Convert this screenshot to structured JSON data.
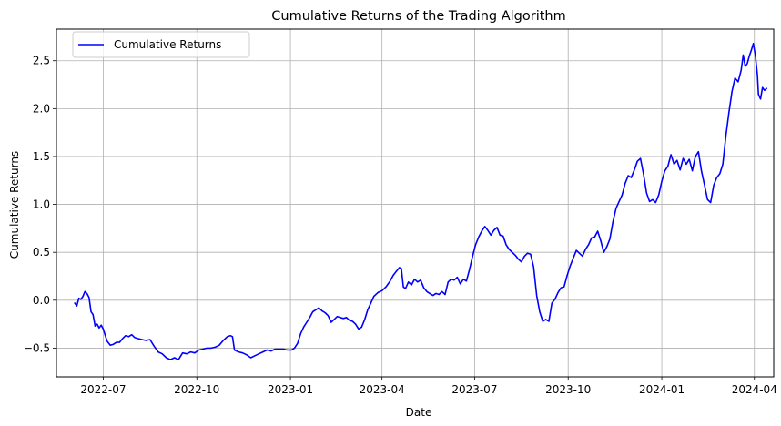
{
  "chart_data": {
    "type": "line",
    "title": "Cumulative Returns of the Trading Algorithm",
    "xlabel": "Date",
    "ylabel": "Cumulative Returns",
    "xlim": [
      "2022-05-16",
      "2024-04-20"
    ],
    "ylim": [
      -0.8,
      2.83
    ],
    "x_ticks": [
      "2022-07",
      "2022-10",
      "2023-01",
      "2023-04",
      "2023-07",
      "2023-10",
      "2024-01",
      "2024-04"
    ],
    "y_ticks": [
      -0.5,
      0.0,
      0.5,
      1.0,
      1.5,
      2.0,
      2.5
    ],
    "y_tick_labels": [
      "−0.5",
      "0.0",
      "0.5",
      "1.0",
      "1.5",
      "2.0",
      "2.5"
    ],
    "grid": true,
    "legend_position": "upper-left",
    "series": [
      {
        "name": "Cumulative Returns",
        "color": "#0000ff",
        "points": [
          [
            "2022-06-03",
            -0.03
          ],
          [
            "2022-06-05",
            -0.06
          ],
          [
            "2022-06-07",
            0.02
          ],
          [
            "2022-06-09",
            0.01
          ],
          [
            "2022-06-11",
            0.04
          ],
          [
            "2022-06-13",
            0.09
          ],
          [
            "2022-06-15",
            0.07
          ],
          [
            "2022-06-17",
            0.03
          ],
          [
            "2022-06-19",
            -0.12
          ],
          [
            "2022-06-21",
            -0.15
          ],
          [
            "2022-06-23",
            -0.27
          ],
          [
            "2022-06-25",
            -0.25
          ],
          [
            "2022-06-27",
            -0.29
          ],
          [
            "2022-06-29",
            -0.26
          ],
          [
            "2022-07-01",
            -0.3
          ],
          [
            "2022-07-03",
            -0.37
          ],
          [
            "2022-07-05",
            -0.43
          ],
          [
            "2022-07-08",
            -0.47
          ],
          [
            "2022-07-11",
            -0.46
          ],
          [
            "2022-07-14",
            -0.44
          ],
          [
            "2022-07-17",
            -0.44
          ],
          [
            "2022-07-20",
            -0.4
          ],
          [
            "2022-07-23",
            -0.37
          ],
          [
            "2022-07-26",
            -0.38
          ],
          [
            "2022-07-29",
            -0.36
          ],
          [
            "2022-08-01",
            -0.39
          ],
          [
            "2022-08-04",
            -0.4
          ],
          [
            "2022-08-08",
            -0.41
          ],
          [
            "2022-08-12",
            -0.42
          ],
          [
            "2022-08-16",
            -0.41
          ],
          [
            "2022-08-20",
            -0.48
          ],
          [
            "2022-08-24",
            -0.54
          ],
          [
            "2022-08-28",
            -0.56
          ],
          [
            "2022-09-01",
            -0.6
          ],
          [
            "2022-09-05",
            -0.62
          ],
          [
            "2022-09-09",
            -0.6
          ],
          [
            "2022-09-13",
            -0.62
          ],
          [
            "2022-09-17",
            -0.55
          ],
          [
            "2022-09-21",
            -0.56
          ],
          [
            "2022-09-25",
            -0.54
          ],
          [
            "2022-09-29",
            -0.55
          ],
          [
            "2022-10-03",
            -0.52
          ],
          [
            "2022-10-07",
            -0.51
          ],
          [
            "2022-10-11",
            -0.5
          ],
          [
            "2022-10-15",
            -0.5
          ],
          [
            "2022-10-19",
            -0.49
          ],
          [
            "2022-10-23",
            -0.47
          ],
          [
            "2022-10-27",
            -0.42
          ],
          [
            "2022-10-31",
            -0.38
          ],
          [
            "2022-11-03",
            -0.37
          ],
          [
            "2022-11-05",
            -0.38
          ],
          [
            "2022-11-07",
            -0.52
          ],
          [
            "2022-11-11",
            -0.54
          ],
          [
            "2022-11-15",
            -0.55
          ],
          [
            "2022-11-19",
            -0.57
          ],
          [
            "2022-11-23",
            -0.6
          ],
          [
            "2022-11-27",
            -0.58
          ],
          [
            "2022-12-01",
            -0.56
          ],
          [
            "2022-12-05",
            -0.54
          ],
          [
            "2022-12-09",
            -0.52
          ],
          [
            "2022-12-13",
            -0.53
          ],
          [
            "2022-12-17",
            -0.51
          ],
          [
            "2022-12-21",
            -0.51
          ],
          [
            "2022-12-25",
            -0.51
          ],
          [
            "2022-12-29",
            -0.52
          ],
          [
            "2023-01-02",
            -0.52
          ],
          [
            "2023-01-05",
            -0.5
          ],
          [
            "2023-01-08",
            -0.45
          ],
          [
            "2023-01-11",
            -0.35
          ],
          [
            "2023-01-14",
            -0.28
          ],
          [
            "2023-01-17",
            -0.23
          ],
          [
            "2023-01-20",
            -0.18
          ],
          [
            "2023-01-23",
            -0.12
          ],
          [
            "2023-01-26",
            -0.1
          ],
          [
            "2023-01-29",
            -0.08
          ],
          [
            "2023-02-01",
            -0.11
          ],
          [
            "2023-02-04",
            -0.13
          ],
          [
            "2023-02-07",
            -0.16
          ],
          [
            "2023-02-10",
            -0.23
          ],
          [
            "2023-02-13",
            -0.2
          ],
          [
            "2023-02-16",
            -0.17
          ],
          [
            "2023-02-19",
            -0.18
          ],
          [
            "2023-02-22",
            -0.19
          ],
          [
            "2023-02-25",
            -0.18
          ],
          [
            "2023-02-28",
            -0.21
          ],
          [
            "2023-03-03",
            -0.22
          ],
          [
            "2023-03-06",
            -0.25
          ],
          [
            "2023-03-09",
            -0.3
          ],
          [
            "2023-03-12",
            -0.28
          ],
          [
            "2023-03-15",
            -0.2
          ],
          [
            "2023-03-18",
            -0.1
          ],
          [
            "2023-03-21",
            -0.03
          ],
          [
            "2023-03-24",
            0.04
          ],
          [
            "2023-03-28",
            0.08
          ],
          [
            "2023-04-01",
            0.1
          ],
          [
            "2023-04-05",
            0.14
          ],
          [
            "2023-04-09",
            0.2
          ],
          [
            "2023-04-12",
            0.26
          ],
          [
            "2023-04-15",
            0.3
          ],
          [
            "2023-04-18",
            0.34
          ],
          [
            "2023-04-20",
            0.33
          ],
          [
            "2023-04-22",
            0.14
          ],
          [
            "2023-04-24",
            0.12
          ],
          [
            "2023-04-27",
            0.19
          ],
          [
            "2023-04-30",
            0.16
          ],
          [
            "2023-05-03",
            0.22
          ],
          [
            "2023-05-06",
            0.19
          ],
          [
            "2023-05-09",
            0.21
          ],
          [
            "2023-05-12",
            0.13
          ],
          [
            "2023-05-15",
            0.09
          ],
          [
            "2023-05-18",
            0.07
          ],
          [
            "2023-05-21",
            0.05
          ],
          [
            "2023-05-24",
            0.07
          ],
          [
            "2023-05-27",
            0.06
          ],
          [
            "2023-05-30",
            0.09
          ],
          [
            "2023-06-02",
            0.06
          ],
          [
            "2023-06-05",
            0.19
          ],
          [
            "2023-06-08",
            0.22
          ],
          [
            "2023-06-11",
            0.21
          ],
          [
            "2023-06-14",
            0.24
          ],
          [
            "2023-06-17",
            0.17
          ],
          [
            "2023-06-20",
            0.22
          ],
          [
            "2023-06-23",
            0.2
          ],
          [
            "2023-06-26",
            0.32
          ],
          [
            "2023-06-29",
            0.46
          ],
          [
            "2023-07-02",
            0.58
          ],
          [
            "2023-07-05",
            0.66
          ],
          [
            "2023-07-08",
            0.72
          ],
          [
            "2023-07-11",
            0.77
          ],
          [
            "2023-07-14",
            0.73
          ],
          [
            "2023-07-17",
            0.68
          ],
          [
            "2023-07-20",
            0.73
          ],
          [
            "2023-07-23",
            0.76
          ],
          [
            "2023-07-26",
            0.68
          ],
          [
            "2023-07-29",
            0.67
          ],
          [
            "2023-08-01",
            0.58
          ],
          [
            "2023-08-04",
            0.53
          ],
          [
            "2023-08-07",
            0.5
          ],
          [
            "2023-08-10",
            0.47
          ],
          [
            "2023-08-13",
            0.43
          ],
          [
            "2023-08-16",
            0.4
          ],
          [
            "2023-08-19",
            0.46
          ],
          [
            "2023-08-22",
            0.49
          ],
          [
            "2023-08-25",
            0.48
          ],
          [
            "2023-08-28",
            0.35
          ],
          [
            "2023-08-31",
            0.05
          ],
          [
            "2023-09-03",
            -0.12
          ],
          [
            "2023-09-06",
            -0.22
          ],
          [
            "2023-09-09",
            -0.2
          ],
          [
            "2023-09-12",
            -0.22
          ],
          [
            "2023-09-15",
            -0.03
          ],
          [
            "2023-09-18",
            0.01
          ],
          [
            "2023-09-21",
            0.08
          ],
          [
            "2023-09-24",
            0.13
          ],
          [
            "2023-09-27",
            0.14
          ],
          [
            "2023-09-30",
            0.26
          ],
          [
            "2023-10-03",
            0.36
          ],
          [
            "2023-10-06",
            0.44
          ],
          [
            "2023-10-09",
            0.52
          ],
          [
            "2023-10-12",
            0.49
          ],
          [
            "2023-10-15",
            0.46
          ],
          [
            "2023-10-18",
            0.53
          ],
          [
            "2023-10-21",
            0.58
          ],
          [
            "2023-10-24",
            0.65
          ],
          [
            "2023-10-27",
            0.66
          ],
          [
            "2023-10-30",
            0.72
          ],
          [
            "2023-11-02",
            0.62
          ],
          [
            "2023-11-05",
            0.5
          ],
          [
            "2023-11-08",
            0.56
          ],
          [
            "2023-11-11",
            0.64
          ],
          [
            "2023-11-14",
            0.82
          ],
          [
            "2023-11-17",
            0.96
          ],
          [
            "2023-11-20",
            1.03
          ],
          [
            "2023-11-23",
            1.1
          ],
          [
            "2023-11-26",
            1.22
          ],
          [
            "2023-11-29",
            1.3
          ],
          [
            "2023-12-02",
            1.28
          ],
          [
            "2023-12-05",
            1.36
          ],
          [
            "2023-12-08",
            1.45
          ],
          [
            "2023-12-11",
            1.48
          ],
          [
            "2023-12-14",
            1.32
          ],
          [
            "2023-12-17",
            1.12
          ],
          [
            "2023-12-20",
            1.03
          ],
          [
            "2023-12-23",
            1.05
          ],
          [
            "2023-12-26",
            1.02
          ],
          [
            "2023-12-29",
            1.1
          ],
          [
            "2024-01-01",
            1.24
          ],
          [
            "2024-01-04",
            1.35
          ],
          [
            "2024-01-07",
            1.4
          ],
          [
            "2024-01-10",
            1.52
          ],
          [
            "2024-01-13",
            1.42
          ],
          [
            "2024-01-16",
            1.46
          ],
          [
            "2024-01-19",
            1.36
          ],
          [
            "2024-01-22",
            1.48
          ],
          [
            "2024-01-25",
            1.42
          ],
          [
            "2024-01-28",
            1.47
          ],
          [
            "2024-01-31",
            1.35
          ],
          [
            "2024-02-03",
            1.5
          ],
          [
            "2024-02-06",
            1.55
          ],
          [
            "2024-02-09",
            1.35
          ],
          [
            "2024-02-12",
            1.2
          ],
          [
            "2024-02-15",
            1.05
          ],
          [
            "2024-02-18",
            1.02
          ],
          [
            "2024-02-21",
            1.2
          ],
          [
            "2024-02-24",
            1.28
          ],
          [
            "2024-02-27",
            1.32
          ],
          [
            "2024-03-01",
            1.42
          ],
          [
            "2024-03-04",
            1.72
          ],
          [
            "2024-03-07",
            1.96
          ],
          [
            "2024-03-10",
            2.18
          ],
          [
            "2024-03-13",
            2.32
          ],
          [
            "2024-03-16",
            2.28
          ],
          [
            "2024-03-19",
            2.4
          ],
          [
            "2024-03-21",
            2.56
          ],
          [
            "2024-03-23",
            2.44
          ],
          [
            "2024-03-25",
            2.47
          ],
          [
            "2024-03-27",
            2.55
          ],
          [
            "2024-03-29",
            2.61
          ],
          [
            "2024-03-31",
            2.68
          ],
          [
            "2024-04-02",
            2.55
          ],
          [
            "2024-04-04",
            2.35
          ],
          [
            "2024-04-05",
            2.15
          ],
          [
            "2024-04-07",
            2.1
          ],
          [
            "2024-04-09",
            2.22
          ],
          [
            "2024-04-11",
            2.19
          ],
          [
            "2024-04-13",
            2.21
          ]
        ]
      }
    ]
  }
}
